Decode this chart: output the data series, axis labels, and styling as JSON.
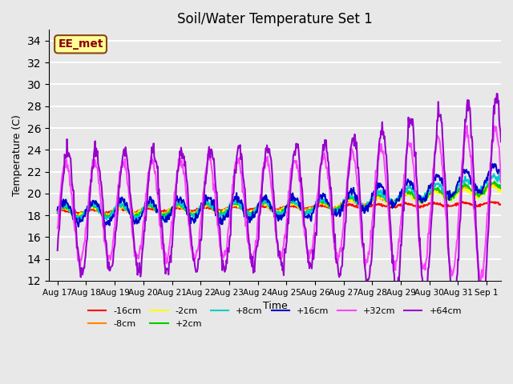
{
  "title": "Soil/Water Temperature Set 1",
  "xlabel": "Time",
  "ylabel": "Temperature (C)",
  "ylim": [
    12,
    35
  ],
  "yticks": [
    12,
    14,
    16,
    18,
    20,
    22,
    24,
    26,
    28,
    30,
    32,
    34
  ],
  "background_color": "#e8e8e8",
  "plot_bg_color": "#e8e8e8",
  "grid_color": "white",
  "annotation_text": "EE_met",
  "annotation_bg": "#ffff99",
  "annotation_border": "#8B4513",
  "annotation_text_color": "#8B0000",
  "series": {
    "-16cm": {
      "color": "#ff0000",
      "linewidth": 1.5
    },
    "-8cm": {
      "color": "#ff8800",
      "linewidth": 1.5
    },
    "-2cm": {
      "color": "#ffff00",
      "linewidth": 1.5
    },
    "+2cm": {
      "color": "#00cc00",
      "linewidth": 1.5
    },
    "+8cm": {
      "color": "#00cccc",
      "linewidth": 1.5
    },
    "+16cm": {
      "color": "#0000cc",
      "linewidth": 1.5
    },
    "+32cm": {
      "color": "#ff44ff",
      "linewidth": 1.5
    },
    "+64cm": {
      "color": "#9900cc",
      "linewidth": 1.5
    }
  },
  "n_days": 15.5,
  "points_per_day": 48,
  "start_day": 17
}
